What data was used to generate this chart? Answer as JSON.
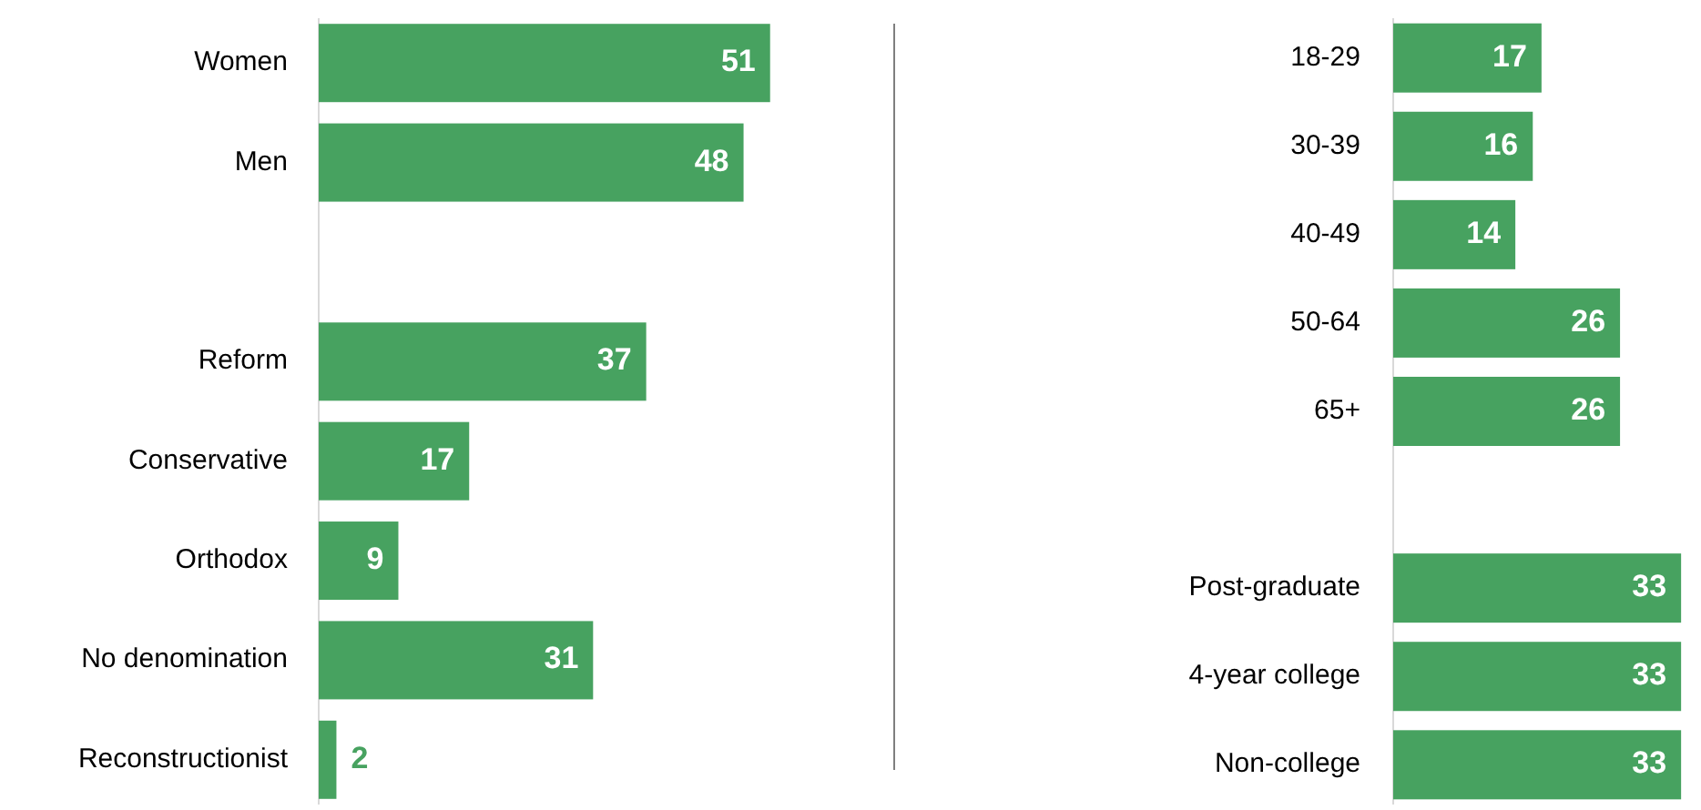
{
  "chart_data": [
    {
      "type": "bar",
      "orientation": "horizontal",
      "categories": [
        "Women",
        "Men",
        null,
        "Reform",
        "Conservative",
        "Orthodox",
        "No denomination",
        "Reconstructionist"
      ],
      "values": [
        51,
        48,
        null,
        37,
        17,
        9,
        31,
        2
      ],
      "color": "#47a260",
      "data_labels": true
    },
    {
      "type": "bar",
      "orientation": "horizontal",
      "categories": [
        "18-29",
        "30-39",
        "40-49",
        "50-64",
        "65+",
        null,
        "Post-graduate",
        "4-year college",
        "Non-college"
      ],
      "values": [
        17,
        16,
        14,
        26,
        26,
        null,
        33,
        33,
        33
      ],
      "color": "#47a260",
      "data_labels": true
    }
  ]
}
